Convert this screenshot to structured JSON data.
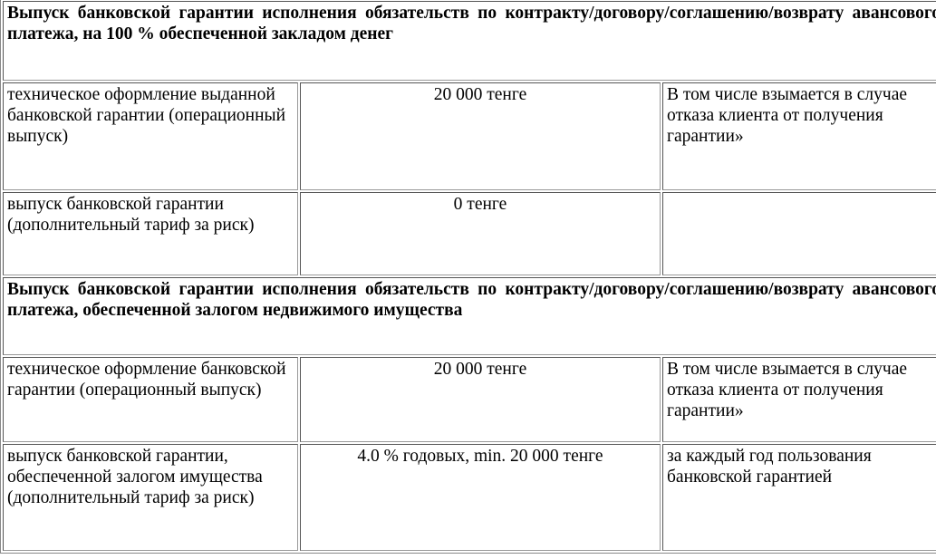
{
  "sections": [
    {
      "title": "Выпуск банковской гарантии исполнения обязательств по контракту/договору/соглашению/возврату авансового платежа, на 100 % обеспеченной закладом денег",
      "rows": [
        {
          "service": "техническое оформление выданной банковской гарантии (операционный выпуск)",
          "tariff": "20 000 тенге",
          "note": "В том числе взымается в случае отказа клиента от получения гарантии»"
        },
        {
          "service": "выпуск банковской гарантии (дополнительный тариф за риск)",
          "tariff": "0 тенге",
          "note": ""
        }
      ]
    },
    {
      "title": "Выпуск банковской гарантии исполнения обязательств по контракту/договору/соглашению/возврату авансового платежа, обеспеченной залогом недвижимого имущества",
      "rows": [
        {
          "service": "техническое оформление банковской гарантии (операционный выпуск)",
          "tariff": "20 000 тенге",
          "note": "В том числе взымается в случае отказа клиента от получения гарантии»"
        },
        {
          "service": "выпуск банковской гарантии, обеспеченной залогом имущества (дополнительный тариф за риск)",
          "tariff": "4.0 % годовых, min. 20 000 тенге",
          "note": "за каждый год пользования банковской гарантией"
        }
      ]
    }
  ]
}
